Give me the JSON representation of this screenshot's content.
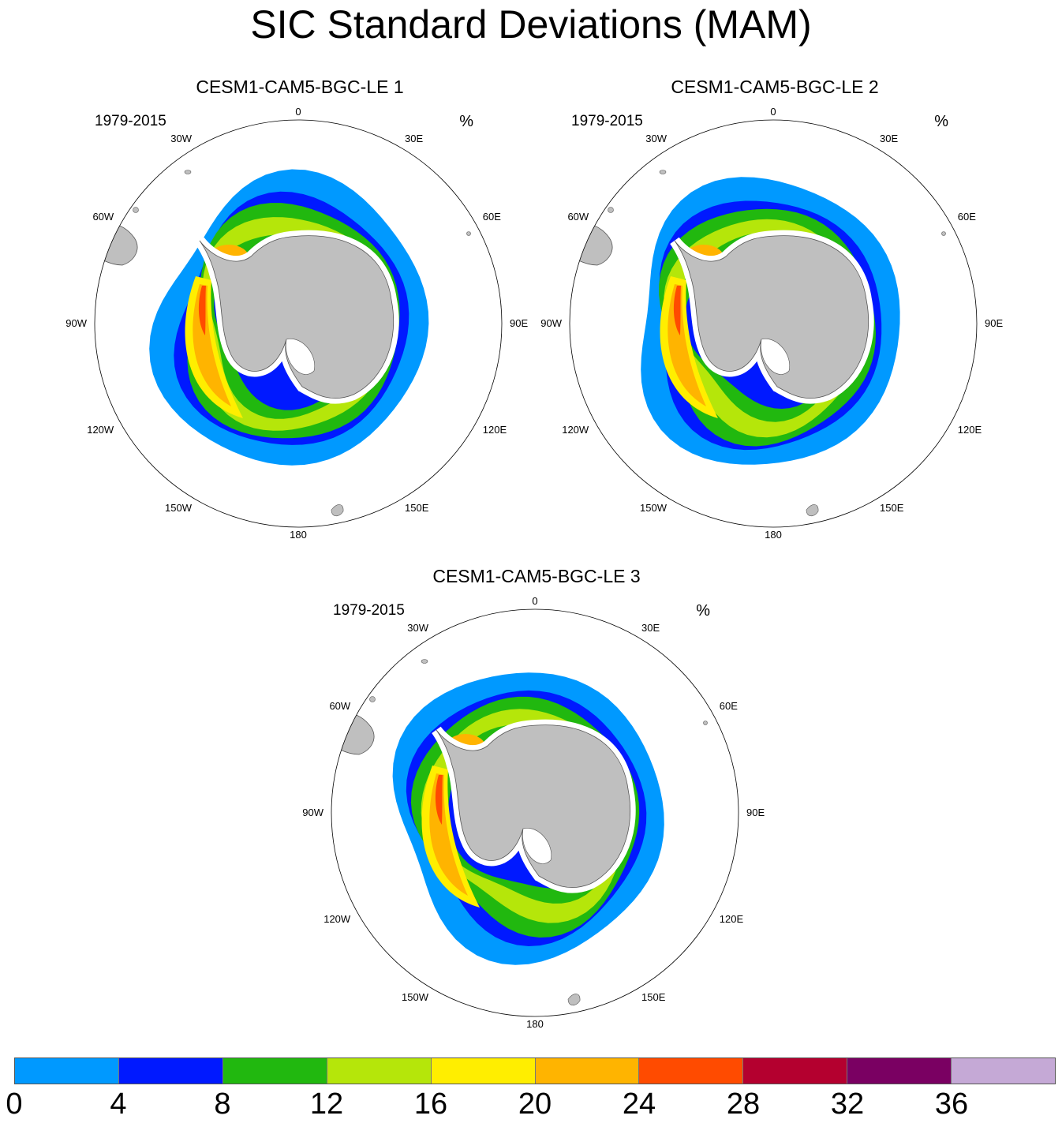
{
  "title": "SIC Standard Deviations (MAM)",
  "panels": [
    {
      "title": "CESM1-CAM5-BGC-LE 1",
      "years": "1979-2015",
      "units": "%"
    },
    {
      "title": "CESM1-CAM5-BGC-LE 2",
      "years": "1979-2015",
      "units": "%"
    },
    {
      "title": "CESM1-CAM5-BGC-LE 3",
      "years": "1979-2015",
      "units": "%"
    }
  ],
  "longitude_labels": [
    "0",
    "30E",
    "60E",
    "90E",
    "120E",
    "150E",
    "180",
    "150W",
    "120W",
    "90W",
    "60W",
    "30W"
  ],
  "colorbar": {
    "colors": [
      "#0099ff",
      "#0019ff",
      "#21b80f",
      "#b5e60a",
      "#ffee00",
      "#ffb400",
      "#ff4b00",
      "#b4002f",
      "#7a0062",
      "#c5a9d6"
    ],
    "tick_labels": [
      "0",
      "4",
      "8",
      "12",
      "16",
      "20",
      "24",
      "28",
      "32",
      "36"
    ]
  },
  "land_color": "#bfbfbf"
}
